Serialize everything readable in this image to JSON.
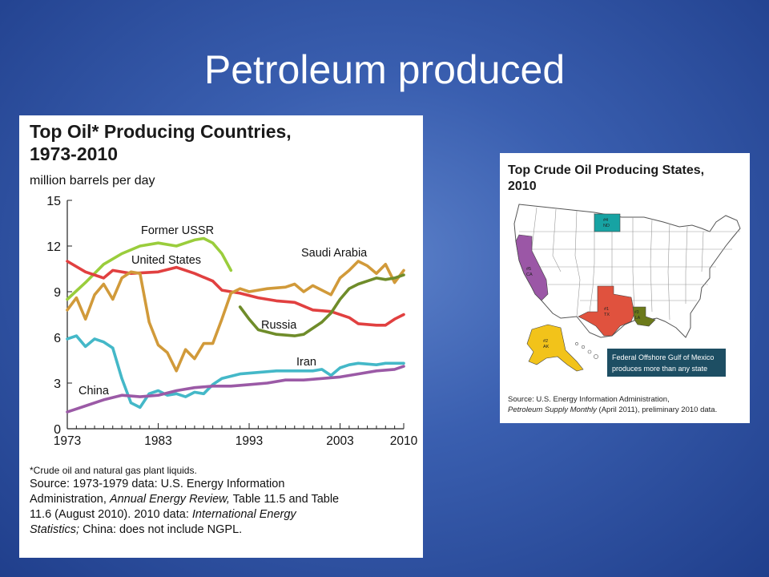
{
  "slide": {
    "title": "Petroleum produced"
  },
  "chart_data": [
    {
      "type": "line",
      "title": "Top Oil* Producing Countries, 1973-2010",
      "title_line1": "Top Oil* Producing Countries,",
      "title_line2": "1973-2010",
      "ylabel": "million barrels per day",
      "xlim": [
        1973,
        2010
      ],
      "ylim": [
        0,
        15
      ],
      "yticks": [
        "0",
        "3",
        "6",
        "9",
        "12",
        "15"
      ],
      "xticks": [
        "1973",
        "1983",
        "1993",
        "2003",
        "2010"
      ],
      "grid": false,
      "series": [
        {
          "name": "Former USSR",
          "color": "#9acd3c",
          "points": [
            [
              1973,
              8.5
            ],
            [
              1975,
              9.6
            ],
            [
              1977,
              10.8
            ],
            [
              1979,
              11.5
            ],
            [
              1981,
              12.0
            ],
            [
              1983,
              12.2
            ],
            [
              1985,
              12.0
            ],
            [
              1986,
              12.2
            ],
            [
              1987,
              12.4
            ],
            [
              1988,
              12.5
            ],
            [
              1989,
              12.2
            ],
            [
              1990,
              11.5
            ],
            [
              1991,
              10.4
            ]
          ]
        },
        {
          "name": "United States",
          "color": "#e14040",
          "points": [
            [
              1973,
              11.0
            ],
            [
              1975,
              10.3
            ],
            [
              1977,
              9.9
            ],
            [
              1978,
              10.4
            ],
            [
              1980,
              10.2
            ],
            [
              1983,
              10.3
            ],
            [
              1985,
              10.6
            ],
            [
              1987,
              10.2
            ],
            [
              1989,
              9.7
            ],
            [
              1990,
              9.1
            ],
            [
              1992,
              8.9
            ],
            [
              1994,
              8.6
            ],
            [
              1996,
              8.4
            ],
            [
              1998,
              8.3
            ],
            [
              2000,
              7.8
            ],
            [
              2002,
              7.7
            ],
            [
              2004,
              7.3
            ],
            [
              2005,
              6.9
            ],
            [
              2007,
              6.8
            ],
            [
              2008,
              6.8
            ],
            [
              2009,
              7.2
            ],
            [
              2010,
              7.5
            ]
          ]
        },
        {
          "name": "Saudi Arabia",
          "color": "#d19a3a",
          "points": [
            [
              1973,
              7.8
            ],
            [
              1974,
              8.6
            ],
            [
              1975,
              7.2
            ],
            [
              1976,
              8.8
            ],
            [
              1977,
              9.5
            ],
            [
              1978,
              8.5
            ],
            [
              1979,
              9.9
            ],
            [
              1980,
              10.3
            ],
            [
              1981,
              10.2
            ],
            [
              1982,
              7.0
            ],
            [
              1983,
              5.5
            ],
            [
              1984,
              5.0
            ],
            [
              1985,
              3.8
            ],
            [
              1986,
              5.2
            ],
            [
              1987,
              4.6
            ],
            [
              1988,
              5.6
            ],
            [
              1989,
              5.6
            ],
            [
              1990,
              7.2
            ],
            [
              1991,
              8.9
            ],
            [
              1992,
              9.2
            ],
            [
              1993,
              9.0
            ],
            [
              1995,
              9.2
            ],
            [
              1997,
              9.3
            ],
            [
              1998,
              9.5
            ],
            [
              1999,
              9.0
            ],
            [
              2000,
              9.4
            ],
            [
              2002,
              8.8
            ],
            [
              2003,
              9.9
            ],
            [
              2004,
              10.4
            ],
            [
              2005,
              11.0
            ],
            [
              2006,
              10.7
            ],
            [
              2007,
              10.2
            ],
            [
              2008,
              10.8
            ],
            [
              2009,
              9.6
            ],
            [
              2010,
              10.4
            ]
          ]
        },
        {
          "name": "Russia",
          "color": "#6f8c2a",
          "points": [
            [
              1992,
              8.0
            ],
            [
              1993,
              7.2
            ],
            [
              1994,
              6.5
            ],
            [
              1996,
              6.2
            ],
            [
              1998,
              6.1
            ],
            [
              1999,
              6.2
            ],
            [
              2001,
              7.0
            ],
            [
              2002,
              7.6
            ],
            [
              2003,
              8.5
            ],
            [
              2004,
              9.2
            ],
            [
              2005,
              9.5
            ],
            [
              2006,
              9.7
            ],
            [
              2007,
              9.9
            ],
            [
              2008,
              9.8
            ],
            [
              2009,
              9.9
            ],
            [
              2010,
              10.1
            ]
          ]
        },
        {
          "name": "Iran",
          "color": "#44b8c8",
          "points": [
            [
              1973,
              5.9
            ],
            [
              1974,
              6.1
            ],
            [
              1975,
              5.4
            ],
            [
              1976,
              5.9
            ],
            [
              1977,
              5.7
            ],
            [
              1978,
              5.3
            ],
            [
              1979,
              3.3
            ],
            [
              1980,
              1.7
            ],
            [
              1981,
              1.4
            ],
            [
              1982,
              2.3
            ],
            [
              1983,
              2.5
            ],
            [
              1984,
              2.2
            ],
            [
              1985,
              2.3
            ],
            [
              1986,
              2.1
            ],
            [
              1987,
              2.4
            ],
            [
              1988,
              2.3
            ],
            [
              1989,
              2.9
            ],
            [
              1990,
              3.3
            ],
            [
              1992,
              3.6
            ],
            [
              1994,
              3.7
            ],
            [
              1996,
              3.8
            ],
            [
              1998,
              3.8
            ],
            [
              2000,
              3.8
            ],
            [
              2001,
              3.9
            ],
            [
              2002,
              3.5
            ],
            [
              2003,
              4.0
            ],
            [
              2004,
              4.2
            ],
            [
              2005,
              4.3
            ],
            [
              2007,
              4.2
            ],
            [
              2008,
              4.3
            ],
            [
              2010,
              4.3
            ]
          ]
        },
        {
          "name": "China",
          "color": "#9b5aa6",
          "points": [
            [
              1973,
              1.1
            ],
            [
              1975,
              1.5
            ],
            [
              1977,
              1.9
            ],
            [
              1979,
              2.2
            ],
            [
              1981,
              2.1
            ],
            [
              1983,
              2.2
            ],
            [
              1985,
              2.5
            ],
            [
              1987,
              2.7
            ],
            [
              1989,
              2.8
            ],
            [
              1991,
              2.8
            ],
            [
              1993,
              2.9
            ],
            [
              1995,
              3.0
            ],
            [
              1997,
              3.2
            ],
            [
              1999,
              3.2
            ],
            [
              2001,
              3.3
            ],
            [
              2003,
              3.4
            ],
            [
              2005,
              3.6
            ],
            [
              2007,
              3.8
            ],
            [
              2009,
              3.9
            ],
            [
              2010,
              4.1
            ]
          ]
        }
      ],
      "footnote": "*Crude oil and natural gas plant liquids.",
      "source": {
        "l1": "Source: 1973-1979 data: U.S. Energy Information",
        "l2a": "Administration, ",
        "l2b": "Annual Energy Review,",
        "l2c": " Table 11.5 and Table",
        "l3": "11.6 (August 2010). 2010 data: ",
        "l3b": "International Energy",
        "l4a": "Statistics;",
        "l4b": " China: does not include NGPL."
      }
    }
  ],
  "map": {
    "title_line1": "Top Crude Oil Producing States,",
    "title_line2": "2010",
    "states": [
      {
        "rank": "#1",
        "abbr": "TX",
        "color": "#e0523e"
      },
      {
        "rank": "#2",
        "abbr": "AK",
        "color": "#f2c31a"
      },
      {
        "rank": "#3",
        "abbr": "LA",
        "color": "#6c7a1a"
      },
      {
        "rank": "#4",
        "abbr": "ND",
        "color": "#17a3a3"
      },
      {
        "rank": "#5",
        "abbr": "CA",
        "color": "#9b57a6"
      }
    ],
    "callout_line1": "Federal Offshore Gulf of Mexico",
    "callout_line2": "produces more than any state",
    "source_line1": "Source: U.S. Energy Information Administration,",
    "source_line2a": "Petroleum Supply Monthly",
    "source_line2b": " (April 2011), preliminary 2010 data."
  }
}
